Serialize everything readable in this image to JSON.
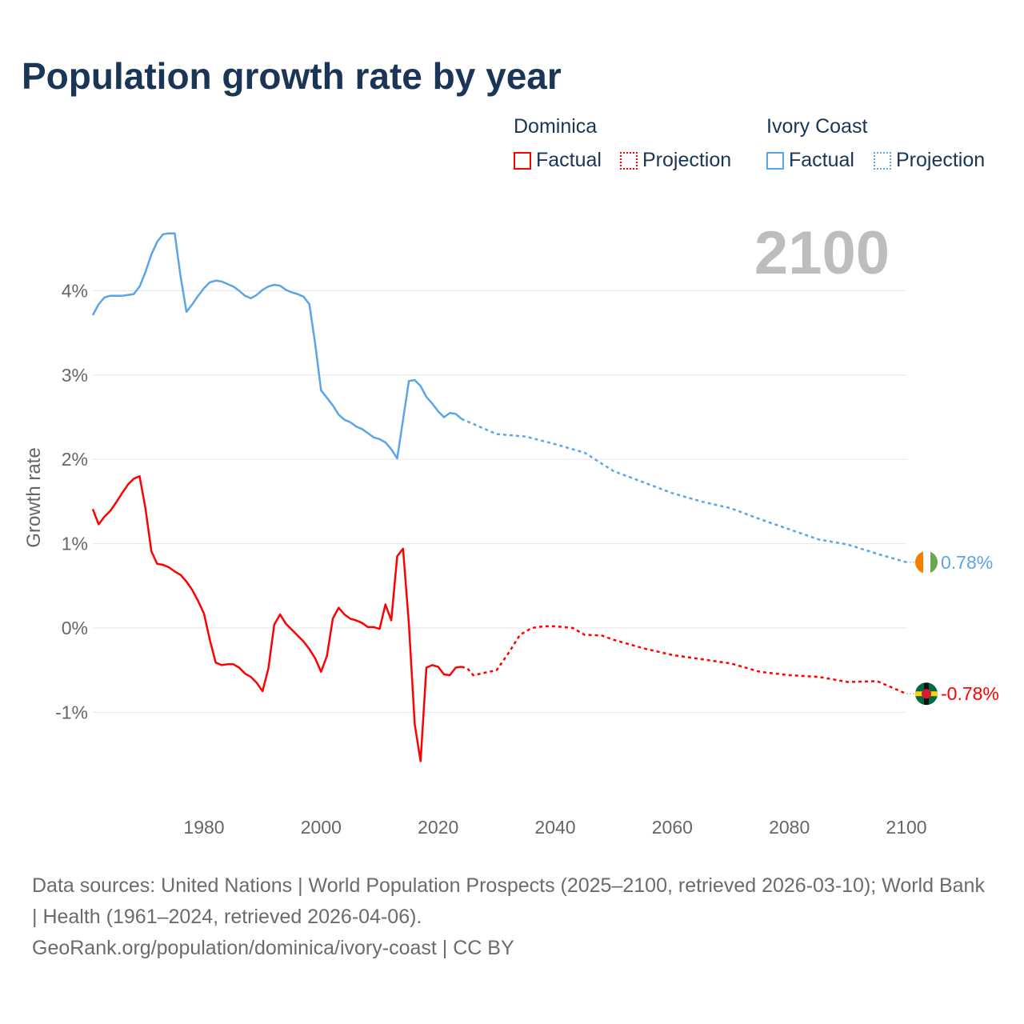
{
  "title": "Population growth rate by year",
  "legend": {
    "groups": [
      {
        "name": "Dominica",
        "factual": "Factual",
        "projection": "Projection",
        "color": "#ff0000"
      },
      {
        "name": "Ivory Coast",
        "factual": "Factual",
        "projection": "Projection",
        "color": "#5aa5ea"
      }
    ]
  },
  "year_label": "2100",
  "footer": {
    "line1": "Data sources: United Nations | World Population Prospects (2025–2100, retrieved 2026-03-10); World Bank | Health (1961–2024, retrieved 2026-04-06).",
    "line2": "GeoRank.org/population/dominica/ivory-coast | CC BY"
  },
  "chart_data": {
    "type": "line",
    "title": "Population growth rate by year",
    "ylabel": "Growth rate",
    "xlabel": "",
    "xlim": [
      1961,
      2100
    ],
    "ylim": [
      -2,
      4.8
    ],
    "yticks": [
      {
        "v": 4,
        "label": "4%"
      },
      {
        "v": 3,
        "label": "3%"
      },
      {
        "v": 2,
        "label": "2%"
      },
      {
        "v": 1,
        "label": "1%"
      },
      {
        "v": 0,
        "label": "0%"
      },
      {
        "v": -1,
        "label": "-1%"
      }
    ],
    "xticks": [
      {
        "v": 1980,
        "label": "1980"
      },
      {
        "v": 2000,
        "label": "2000"
      },
      {
        "v": 2020,
        "label": "2020"
      },
      {
        "v": 2040,
        "label": "2040"
      },
      {
        "v": 2060,
        "label": "2060"
      },
      {
        "v": 2080,
        "label": "2080"
      },
      {
        "v": 2100,
        "label": "2100"
      }
    ],
    "grid": true,
    "legend_position": "top-right",
    "series": [
      {
        "name": "Ivory Coast",
        "color": "#5aa5ea",
        "end_label": "0.78%",
        "factual_start": 1961,
        "factual": [
          3.71,
          3.84,
          3.92,
          3.94,
          3.94,
          3.94,
          3.95,
          3.96,
          4.05,
          4.22,
          4.43,
          4.58,
          4.67,
          4.68,
          4.68,
          4.17,
          3.75,
          3.84,
          3.94,
          4.03,
          4.1,
          4.12,
          4.11,
          4.08,
          4.05,
          4.0,
          3.94,
          3.91,
          3.95,
          4.01,
          4.05,
          4.07,
          4.06,
          4.01,
          3.98,
          3.96,
          3.93,
          3.84,
          3.37,
          2.82,
          2.73,
          2.64,
          2.53,
          2.47,
          2.44,
          2.39,
          2.36,
          2.31,
          2.26,
          2.24,
          2.2,
          2.12,
          2.01,
          2.47,
          2.93,
          2.94,
          2.87,
          2.74,
          2.66,
          2.57,
          2.5,
          2.55,
          2.54,
          2.48
        ],
        "projection": [
          [
            2024,
            2.48
          ],
          [
            2025,
            2.45
          ],
          [
            2030,
            2.3
          ],
          [
            2035,
            2.27
          ],
          [
            2040,
            2.18
          ],
          [
            2045,
            2.08
          ],
          [
            2050,
            1.86
          ],
          [
            2055,
            1.73
          ],
          [
            2060,
            1.6
          ],
          [
            2065,
            1.5
          ],
          [
            2070,
            1.42
          ],
          [
            2075,
            1.29
          ],
          [
            2080,
            1.17
          ],
          [
            2085,
            1.05
          ],
          [
            2090,
            0.99
          ],
          [
            2095,
            0.88
          ],
          [
            2100,
            0.78
          ]
        ]
      },
      {
        "name": "Dominica",
        "color": "#ff0000",
        "end_label": "-0.78%",
        "factual_start": 1961,
        "factual": [
          1.41,
          1.23,
          1.32,
          1.39,
          1.49,
          1.6,
          1.7,
          1.77,
          1.8,
          1.42,
          0.91,
          0.76,
          0.75,
          0.72,
          0.67,
          0.63,
          0.55,
          0.45,
          0.32,
          0.17,
          -0.14,
          -0.41,
          -0.44,
          -0.43,
          -0.43,
          -0.47,
          -0.54,
          -0.58,
          -0.65,
          -0.75,
          -0.48,
          0.04,
          0.16,
          0.05,
          -0.02,
          -0.09,
          -0.16,
          -0.25,
          -0.36,
          -0.52,
          -0.33,
          0.11,
          0.24,
          0.16,
          0.11,
          0.09,
          0.06,
          0.01,
          0.01,
          -0.01,
          0.28,
          0.09,
          0.85,
          0.94,
          0.05,
          -1.14,
          -1.58,
          -0.47,
          -0.44,
          -0.46,
          -0.55,
          -0.56,
          -0.47,
          -0.46
        ],
        "projection": [
          [
            2024,
            -0.46
          ],
          [
            2025,
            -0.48
          ],
          [
            2026,
            -0.56
          ],
          [
            2028,
            -0.53
          ],
          [
            2030,
            -0.5
          ],
          [
            2032,
            -0.3
          ],
          [
            2034,
            -0.08
          ],
          [
            2036,
            0.0
          ],
          [
            2038,
            0.02
          ],
          [
            2040,
            0.02
          ],
          [
            2043,
            0.0
          ],
          [
            2045,
            -0.08
          ],
          [
            2048,
            -0.09
          ],
          [
            2050,
            -0.14
          ],
          [
            2055,
            -0.24
          ],
          [
            2060,
            -0.32
          ],
          [
            2065,
            -0.37
          ],
          [
            2070,
            -0.42
          ],
          [
            2075,
            -0.52
          ],
          [
            2080,
            -0.56
          ],
          [
            2085,
            -0.58
          ],
          [
            2090,
            -0.64
          ],
          [
            2095,
            -0.63
          ],
          [
            2100,
            -0.78
          ]
        ]
      }
    ]
  }
}
